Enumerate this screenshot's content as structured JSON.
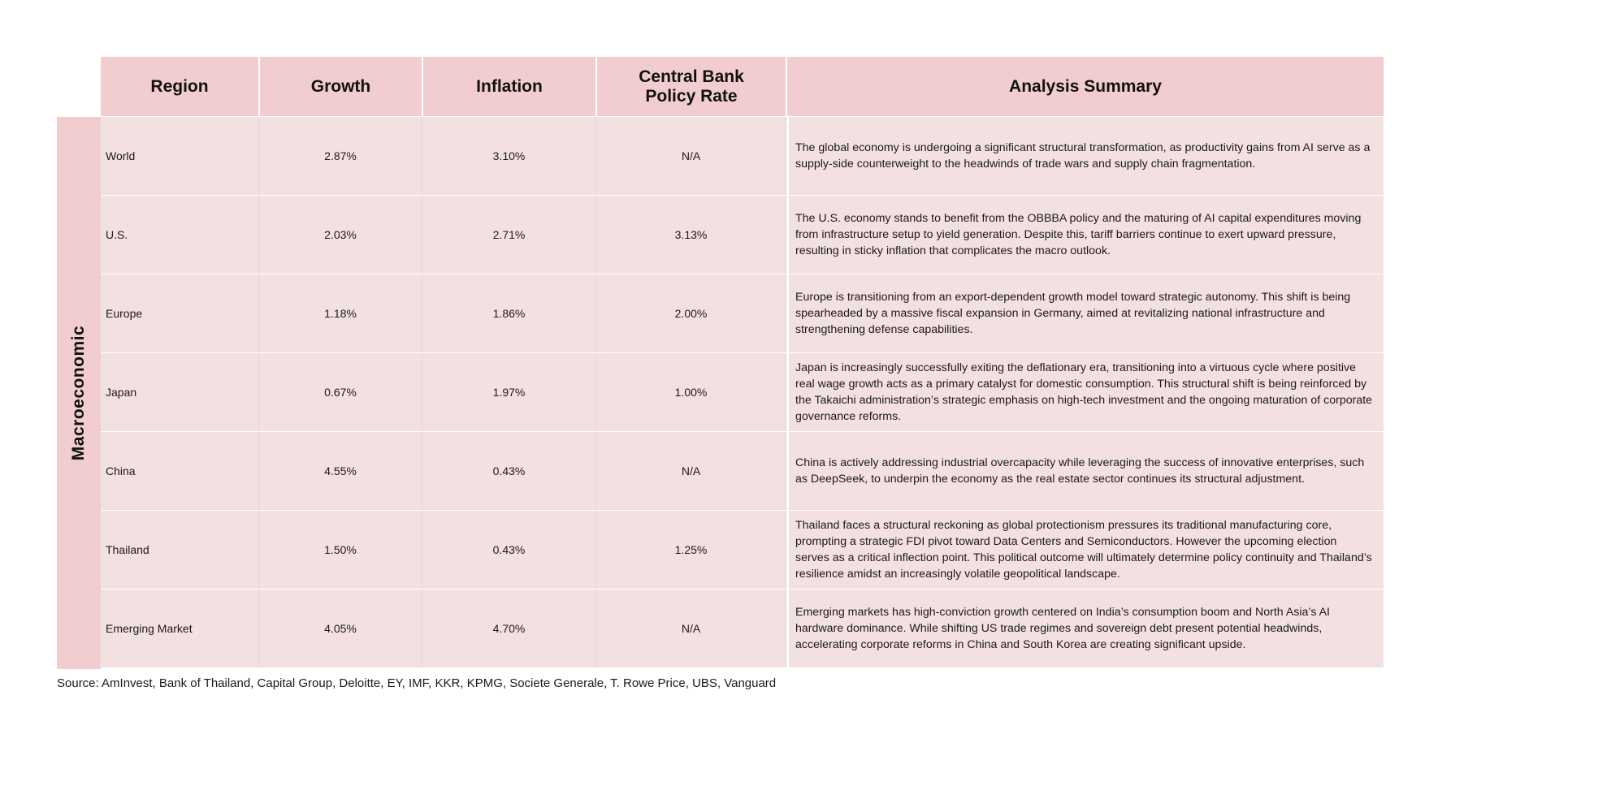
{
  "headers": {
    "region": "Region",
    "growth": "Growth",
    "inflation": "Inflation",
    "policy_rate": "Central Bank Policy Rate",
    "summary": "Analysis Summary"
  },
  "side_label": "Macroeconomic",
  "rows": [
    {
      "region": "World",
      "growth": "2.87%",
      "inflation": "3.10%",
      "policy_rate": "N/A",
      "summary": "The global economy is undergoing a significant structural transformation, as productivity gains from AI serve as a supply-side counterweight to the headwinds of trade wars and supply chain fragmentation."
    },
    {
      "region": "U.S.",
      "growth": "2.03%",
      "inflation": "2.71%",
      "policy_rate": "3.13%",
      "summary": "The U.S. economy stands to benefit from the OBBBA policy and the maturing of AI capital expenditures moving from infrastructure setup to yield generation. Despite this, tariff barriers continue to exert upward pressure, resulting in sticky inflation that complicates the macro outlook."
    },
    {
      "region": "Europe",
      "growth": "1.18%",
      "inflation": "1.86%",
      "policy_rate": "2.00%",
      "summary": "Europe is transitioning from an export-dependent growth model toward strategic autonomy. This shift is being spearheaded by a massive fiscal expansion in Germany, aimed at revitalizing national infrastructure and strengthening defense capabilities."
    },
    {
      "region": "Japan",
      "growth": "0.67%",
      "inflation": "1.97%",
      "policy_rate": "1.00%",
      "summary": "Japan is increasingly successfully exiting the deflationary era, transitioning into a virtuous cycle where positive real wage growth acts as a primary catalyst for domestic consumption. This structural shift is being reinforced by the Takaichi administration’s strategic emphasis on high-tech investment and the ongoing maturation of corporate governance reforms."
    },
    {
      "region": "China",
      "growth": "4.55%",
      "inflation": "0.43%",
      "policy_rate": "N/A",
      "summary": "China is actively addressing industrial overcapacity while leveraging the success of innovative enterprises, such as DeepSeek, to underpin the economy as the real estate sector continues its structural adjustment."
    },
    {
      "region": "Thailand",
      "growth": "1.50%",
      "inflation": "0.43%",
      "policy_rate": "1.25%",
      "summary": "Thailand faces a structural reckoning as global protectionism pressures its traditional manufacturing core, prompting a strategic FDI pivot toward Data Centers and Semiconductors. However the upcoming election serves as a critical inflection point. This political outcome will ultimately determine policy continuity and Thailand’s resilience amidst an increasingly volatile geopolitical landscape."
    },
    {
      "region": "Emerging Market",
      "growth": "4.05%",
      "inflation": "4.70%",
      "policy_rate": "N/A",
      "summary": "Emerging markets has high-conviction growth centered on India’s consumption boom and North Asia’s AI hardware dominance. While shifting US trade regimes and sovereign debt present potential headwinds, accelerating corporate reforms in China and South Korea are creating significant upside."
    }
  ],
  "source": "Source: AmInvest, Bank of Thailand, Capital Group, Deloitte, EY, IMF, KKR, KPMG, Societe Generale, T. Rowe Price, UBS, Vanguard",
  "colors": {
    "header_bg": "#f2cdcf",
    "row_bg": "#f3e1e2",
    "side_bg": "#f2cdcf"
  }
}
